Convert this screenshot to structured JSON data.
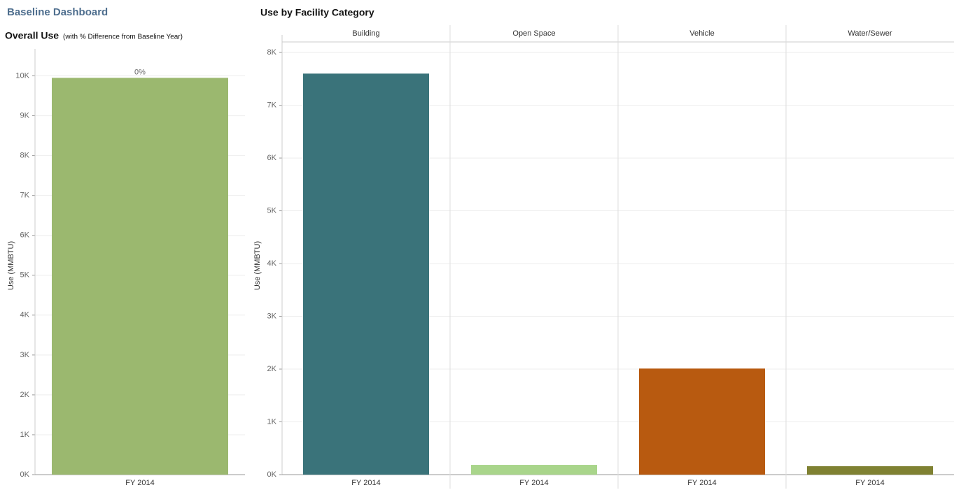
{
  "title": "Baseline Dashboard",
  "chart_data": [
    {
      "type": "bar",
      "title": "Overall Use",
      "subtitle": "(with % Difference from Baseline Year)",
      "y_label": "Use (MMBTU)",
      "categories": [
        "FY 2014"
      ],
      "values": [
        9950
      ],
      "color": "#9bb86f",
      "annotation": "0%",
      "ylim": [
        0,
        10500
      ],
      "yticks": [
        {
          "value": 0,
          "label": "0K"
        },
        {
          "value": 1000,
          "label": "1K"
        },
        {
          "value": 2000,
          "label": "2K"
        },
        {
          "value": 3000,
          "label": "3K"
        },
        {
          "value": 4000,
          "label": "4K"
        },
        {
          "value": 5000,
          "label": "5K"
        },
        {
          "value": 6000,
          "label": "6K"
        },
        {
          "value": 7000,
          "label": "7K"
        },
        {
          "value": 8000,
          "label": "8K"
        },
        {
          "value": 9000,
          "label": "9K"
        },
        {
          "value": 10000,
          "label": "10K"
        }
      ],
      "grid": true
    },
    {
      "type": "facet-bar",
      "title": "Use by Facility Category",
      "y_label": "Use (MMBTU)",
      "categories": [
        "FY 2014"
      ],
      "series": [
        {
          "name": "Building",
          "color": "#3a737a",
          "values": [
            7600
          ]
        },
        {
          "name": "Open Space",
          "color": "#a9d58b",
          "values": [
            185
          ]
        },
        {
          "name": "Vehicle",
          "color": "#b85a10",
          "values": [
            2010
          ]
        },
        {
          "name": "Water/Sewer",
          "color": "#7f8132",
          "values": [
            160
          ]
        }
      ],
      "ylim": [
        0,
        8200
      ],
      "yticks": [
        {
          "value": 0,
          "label": "0K"
        },
        {
          "value": 1000,
          "label": "1K"
        },
        {
          "value": 2000,
          "label": "2K"
        },
        {
          "value": 3000,
          "label": "3K"
        },
        {
          "value": 4000,
          "label": "4K"
        },
        {
          "value": 5000,
          "label": "5K"
        },
        {
          "value": 6000,
          "label": "6K"
        },
        {
          "value": 7000,
          "label": "7K"
        },
        {
          "value": 8000,
          "label": "8K"
        }
      ],
      "grid": true
    }
  ]
}
